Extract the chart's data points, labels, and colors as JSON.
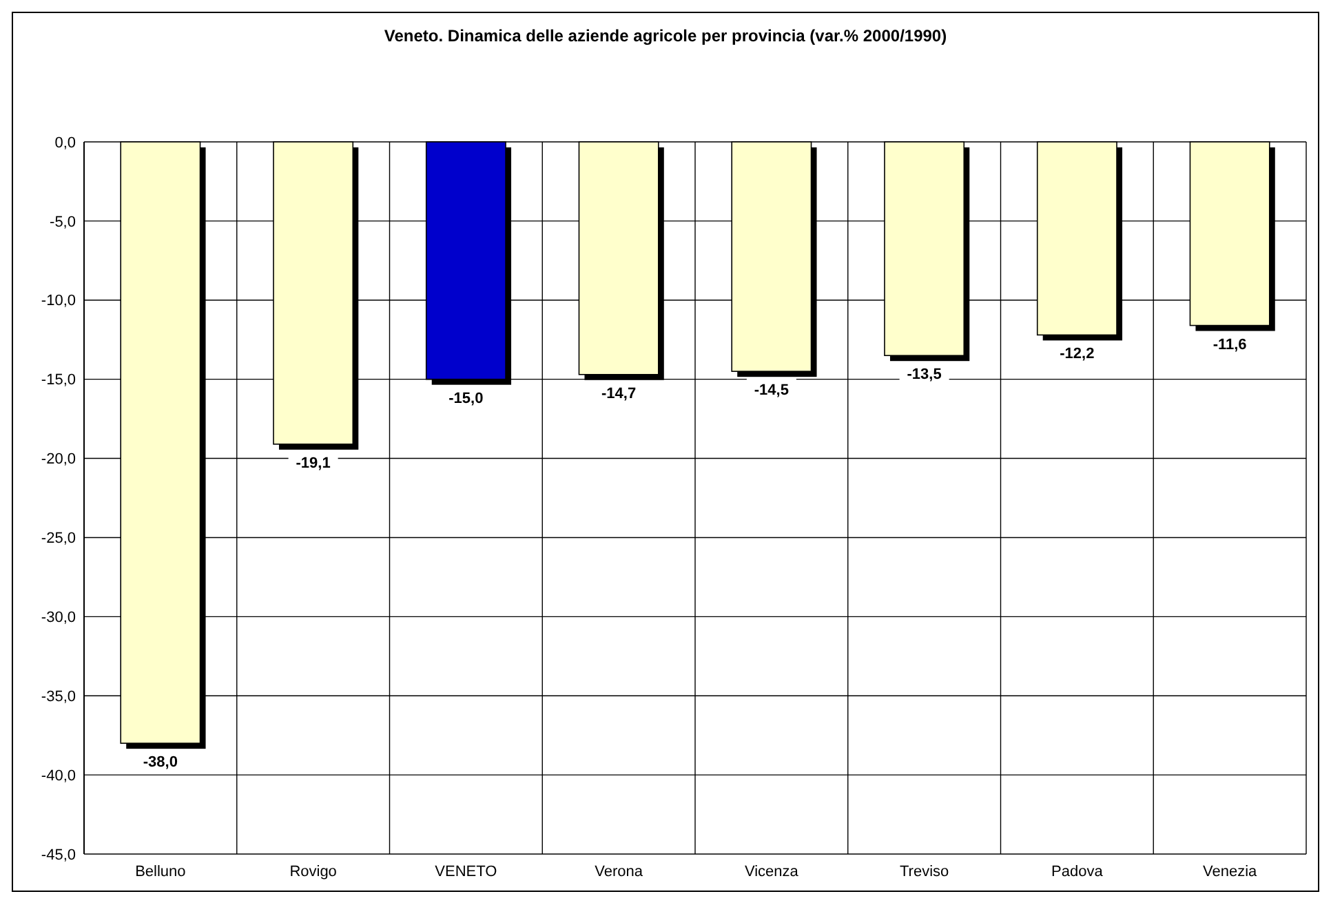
{
  "chart_data": {
    "type": "bar",
    "title": "Veneto. Dinamica delle aziende agricole per provincia (var.% 2000/1990)",
    "categories": [
      "Belluno",
      "Rovigo",
      "VENETO",
      "Verona",
      "Vicenza",
      "Treviso",
      "Padova",
      "Venezia"
    ],
    "values": [
      -38.0,
      -19.1,
      -15.0,
      -14.7,
      -14.5,
      -13.5,
      -12.2,
      -11.6
    ],
    "colors": [
      "#ffffcc",
      "#ffffcc",
      "#0000cc",
      "#ffffcc",
      "#ffffcc",
      "#ffffcc",
      "#ffffcc",
      "#ffffcc"
    ],
    "value_labels": [
      "-38,0",
      "-19,1",
      "-15,0",
      "-14,7",
      "-14,5",
      "-13,5",
      "-12,2",
      "-11,6"
    ],
    "ylim": [
      -45,
      0
    ],
    "yticks": [
      {
        "value": 0,
        "label": "0,0"
      },
      {
        "value": -5,
        "label": "-5,0"
      },
      {
        "value": -10,
        "label": "-10,0"
      },
      {
        "value": -15,
        "label": "-15,0"
      },
      {
        "value": -20,
        "label": "-20,0"
      },
      {
        "value": -25,
        "label": "-25,0"
      },
      {
        "value": -30,
        "label": "-30,0"
      },
      {
        "value": -35,
        "label": "-35,0"
      },
      {
        "value": -40,
        "label": "-40,0"
      },
      {
        "value": -45,
        "label": "-45,0"
      }
    ],
    "grid": true
  }
}
